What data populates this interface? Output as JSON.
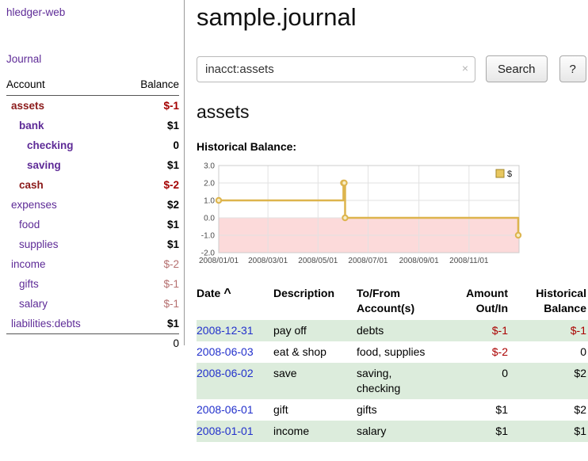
{
  "colors": {
    "link_purple": "#5e2b97",
    "account_negative_name": "#8b1a1a",
    "negative_red": "#a40000",
    "register_negative_red": "#aa0000",
    "muted_negative": "#b56f6f",
    "date_link_blue": "#2230cc",
    "row_green": "#dcecdc",
    "chart_line_gold": "#ddb44d",
    "chart_marker_fill": "#f7ecc4",
    "chart_negative_region": "#fcdada",
    "legend_square_fill": "#e8c75f",
    "legend_square_border": "#a08427"
  },
  "sidebar": {
    "app_title": "hledger-web",
    "journal_label": "Journal",
    "accounts": {
      "header_account": "Account",
      "header_balance": "Balance",
      "rows": [
        {
          "name": "assets",
          "balance": "$-1",
          "indent": 0,
          "bold": true,
          "name_negative": true,
          "balance_class": "neg"
        },
        {
          "name": "bank",
          "balance": "$1",
          "indent": 1,
          "bold": true,
          "name_negative": false,
          "balance_class": ""
        },
        {
          "name": "checking",
          "balance": "0",
          "indent": 2,
          "bold": true,
          "name_negative": false,
          "balance_class": ""
        },
        {
          "name": "saving",
          "balance": "$1",
          "indent": 2,
          "bold": true,
          "name_negative": false,
          "balance_class": ""
        },
        {
          "name": "cash",
          "balance": "$-2",
          "indent": 1,
          "bold": true,
          "name_negative": true,
          "balance_class": "neg"
        },
        {
          "name": "expenses",
          "balance": "$2",
          "indent": 0,
          "bold": false,
          "name_negative": false,
          "balance_class": ""
        },
        {
          "name": "food",
          "balance": "$1",
          "indent": 1,
          "bold": false,
          "name_negative": false,
          "balance_class": ""
        },
        {
          "name": "supplies",
          "balance": "$1",
          "indent": 1,
          "bold": false,
          "name_negative": false,
          "balance_class": ""
        },
        {
          "name": "income",
          "balance": "$-2",
          "indent": 0,
          "bold": false,
          "name_negative": false,
          "balance_class": "muted"
        },
        {
          "name": "gifts",
          "balance": "$-1",
          "indent": 1,
          "bold": false,
          "name_negative": false,
          "balance_class": "muted"
        },
        {
          "name": "salary",
          "balance": "$-1",
          "indent": 1,
          "bold": false,
          "name_negative": false,
          "balance_class": "muted"
        },
        {
          "name": "liabilities:debts",
          "balance": "$1",
          "indent": 0,
          "bold": false,
          "name_negative": false,
          "balance_class": ""
        }
      ],
      "total": "0"
    }
  },
  "main": {
    "title": "sample.journal",
    "search": {
      "value": "inacct:assets",
      "clear_icon": "×",
      "button_label": "Search",
      "help_label": "?"
    },
    "section_title": "assets",
    "register": {
      "headers": {
        "date": "Date",
        "sort_indicator": "^",
        "description": "Description",
        "accounts": "To/From Account(s)",
        "amount": "Amount Out/In",
        "balance": "Historical Balance"
      },
      "rows": [
        {
          "date": "2008-12-31",
          "description": "pay off",
          "accounts": "debts",
          "amount": "$-1",
          "amount_negative": true,
          "balance": "$-1",
          "balance_negative": true
        },
        {
          "date": "2008-06-03",
          "description": "eat & shop",
          "accounts": "food, supplies",
          "amount": "$-2",
          "amount_negative": true,
          "balance": "0",
          "balance_negative": false
        },
        {
          "date": "2008-06-02",
          "description": "save",
          "accounts": "saving, checking",
          "amount": "0",
          "amount_negative": false,
          "balance": "$2",
          "balance_negative": false
        },
        {
          "date": "2008-06-01",
          "description": "gift",
          "accounts": "gifts",
          "amount": "$1",
          "amount_negative": false,
          "balance": "$2",
          "balance_negative": false
        },
        {
          "date": "2008-01-01",
          "description": "income",
          "accounts": "salary",
          "amount": "$1",
          "amount_negative": false,
          "balance": "$1",
          "balance_negative": false
        }
      ]
    }
  },
  "chart_data": {
    "type": "line",
    "title": "Historical Balance:",
    "step": true,
    "series": [
      {
        "name": "$",
        "points": [
          [
            "2008/01/01",
            1
          ],
          [
            "2008/06/01",
            2
          ],
          [
            "2008/06/02",
            2
          ],
          [
            "2008/06/03",
            0
          ],
          [
            "2008/12/31",
            -1
          ]
        ]
      }
    ],
    "ylim": [
      -2,
      3
    ],
    "yticks": [
      3,
      2,
      1,
      0,
      -1,
      -2
    ],
    "xticks": [
      "2008/01/01",
      "2008/03/01",
      "2008/05/01",
      "2008/07/01",
      "2008/09/01",
      "2008/11/01"
    ],
    "x_range": [
      "2008/01/01",
      "2009/01/01"
    ],
    "legend": "$",
    "legend_position": "top-right",
    "grid": true,
    "negative_region_shaded": true
  }
}
